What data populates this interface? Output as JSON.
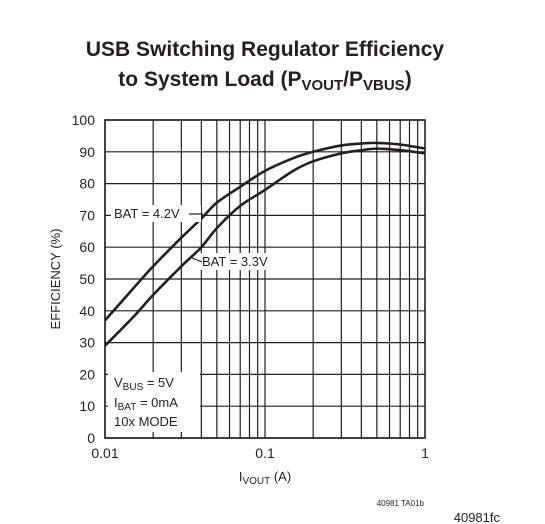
{
  "title_line1": "USB Switching Regulator Efficiency",
  "title_line2_prefix": "to System Load (P",
  "title_sub1": "VOUT",
  "title_mid": "/P",
  "title_sub2": "VBUS",
  "title_suffix": ")",
  "ylabel": "EFFICIENCY (%)",
  "xlabel_prefix": "I",
  "xlabel_sub": "VOUT",
  "xlabel_suffix": " (A)",
  "annotations": {
    "bat42": "BAT = 4.2V",
    "bat33": "BAT = 3.3V",
    "cond1_prefix": "V",
    "cond1_sub": "BUS",
    "cond1_suffix": " = 5V",
    "cond2_prefix": "I",
    "cond2_sub": "BAT",
    "cond2_suffix": " = 0mA",
    "cond3": "10x MODE"
  },
  "figure_code": "40981 TA01b",
  "page_code": "40981fc",
  "chart_data": {
    "type": "line",
    "x_scale": "log",
    "xlim": [
      0.01,
      1
    ],
    "ylim": [
      0,
      100
    ],
    "x_ticks": [
      {
        "value": 0.01,
        "label": "0.01"
      },
      {
        "value": 0.1,
        "label": "0.1"
      },
      {
        "value": 1,
        "label": "1"
      }
    ],
    "y_ticks": [
      0,
      10,
      20,
      30,
      40,
      50,
      60,
      70,
      80,
      90,
      100
    ],
    "grid": true,
    "series": [
      {
        "name": "BAT = 4.2V",
        "x": [
          0.01,
          0.015,
          0.02,
          0.03,
          0.04,
          0.05,
          0.07,
          0.1,
          0.15,
          0.2,
          0.3,
          0.4,
          0.5,
          0.7,
          1.0
        ],
        "y": [
          37,
          47,
          54,
          63,
          69,
          74,
          79,
          84,
          88,
          90,
          92,
          92.6,
          92.8,
          92.3,
          91
        ]
      },
      {
        "name": "BAT = 3.3V",
        "x": [
          0.01,
          0.015,
          0.02,
          0.03,
          0.04,
          0.05,
          0.07,
          0.1,
          0.15,
          0.2,
          0.3,
          0.4,
          0.5,
          0.7,
          1.0
        ],
        "y": [
          29,
          38,
          45,
          54,
          60,
          66,
          73,
          78,
          84,
          87,
          89.5,
          90.5,
          91,
          90.5,
          89.5
        ]
      }
    ]
  }
}
